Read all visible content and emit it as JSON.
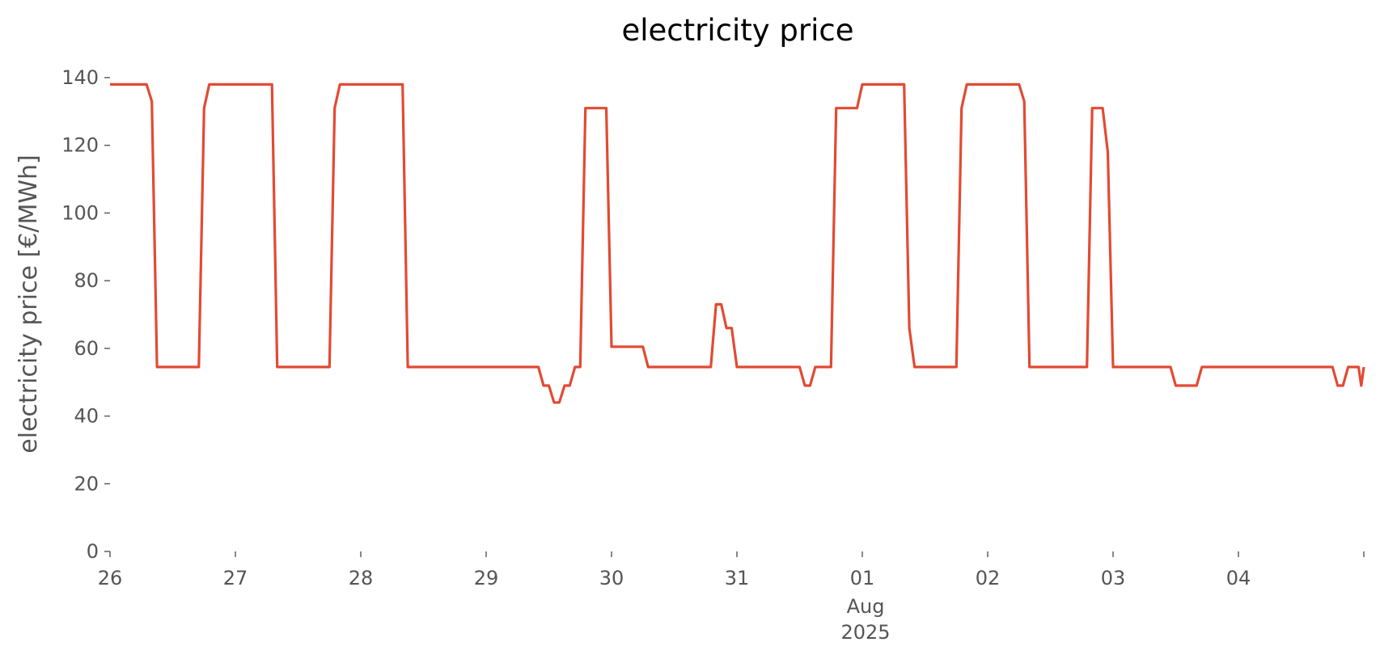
{
  "chart_data": {
    "type": "line",
    "title": "electricity price",
    "xlabel": "",
    "ylabel": "electricity price [€/MWh]",
    "ylim": [
      0,
      140
    ],
    "y_ticks": [
      0,
      20,
      40,
      60,
      80,
      100,
      120,
      140
    ],
    "y_tick_labels": [
      "0",
      "20",
      "40",
      "60",
      "80",
      "100",
      "120",
      "140"
    ],
    "xlim": [
      "2025-07-26",
      "2025-08-05"
    ],
    "x_ticks": [
      {
        "date": "2025-07-26",
        "label": "26"
      },
      {
        "date": "2025-07-27",
        "label": "27"
      },
      {
        "date": "2025-07-28",
        "label": "28"
      },
      {
        "date": "2025-07-29",
        "label": "29"
      },
      {
        "date": "2025-07-30",
        "label": "30"
      },
      {
        "date": "2025-07-31",
        "label": "31"
      },
      {
        "date": "2025-08-01",
        "label": "01"
      },
      {
        "date": "2025-08-02",
        "label": "02"
      },
      {
        "date": "2025-08-03",
        "label": "03"
      },
      {
        "date": "2025-08-04",
        "label": "04"
      },
      {
        "date": "2025-08-05",
        "label": ""
      }
    ],
    "x_secondary_label": [
      "Aug",
      "2025"
    ],
    "grid": false,
    "series": [
      {
        "color": "#E24A33",
        "points": [
          [
            "2025-07-26 00:00",
            138
          ],
          [
            "2025-07-26 07:00",
            138
          ],
          [
            "2025-07-26 08:00",
            133
          ],
          [
            "2025-07-26 09:00",
            54.5
          ],
          [
            "2025-07-26 17:00",
            54.5
          ],
          [
            "2025-07-26 18:00",
            131
          ],
          [
            "2025-07-26 19:00",
            138
          ],
          [
            "2025-07-27 07:00",
            138
          ],
          [
            "2025-07-27 08:00",
            54.5
          ],
          [
            "2025-07-27 18:00",
            54.5
          ],
          [
            "2025-07-27 19:00",
            131
          ],
          [
            "2025-07-27 20:00",
            138
          ],
          [
            "2025-07-28 08:00",
            138
          ],
          [
            "2025-07-28 09:00",
            54.5
          ],
          [
            "2025-07-29 10:00",
            54.5
          ],
          [
            "2025-07-29 11:00",
            49
          ],
          [
            "2025-07-29 12:00",
            49
          ],
          [
            "2025-07-29 13:00",
            44
          ],
          [
            "2025-07-29 14:00",
            44
          ],
          [
            "2025-07-29 15:00",
            49
          ],
          [
            "2025-07-29 16:00",
            49
          ],
          [
            "2025-07-29 17:00",
            54.5
          ],
          [
            "2025-07-29 18:00",
            54.5
          ],
          [
            "2025-07-29 19:00",
            131
          ],
          [
            "2025-07-29 23:00",
            131
          ],
          [
            "2025-07-30 00:00",
            60.5
          ],
          [
            "2025-07-30 06:00",
            60.5
          ],
          [
            "2025-07-30 07:00",
            54.5
          ],
          [
            "2025-07-30 19:00",
            54.5
          ],
          [
            "2025-07-30 20:00",
            73
          ],
          [
            "2025-07-30 21:00",
            73
          ],
          [
            "2025-07-30 22:00",
            66
          ],
          [
            "2025-07-30 23:00",
            66
          ],
          [
            "2025-07-31 00:00",
            54.5
          ],
          [
            "2025-07-31 12:00",
            54.5
          ],
          [
            "2025-07-31 13:00",
            49
          ],
          [
            "2025-07-31 14:00",
            49
          ],
          [
            "2025-07-31 15:00",
            54.5
          ],
          [
            "2025-07-31 18:00",
            54.5
          ],
          [
            "2025-07-31 19:00",
            131
          ],
          [
            "2025-07-31 23:00",
            131
          ],
          [
            "2025-08-01 00:00",
            138
          ],
          [
            "2025-08-01 08:00",
            138
          ],
          [
            "2025-08-01 09:00",
            66
          ],
          [
            "2025-08-01 10:00",
            54.5
          ],
          [
            "2025-08-01 18:00",
            54.5
          ],
          [
            "2025-08-01 19:00",
            131
          ],
          [
            "2025-08-01 20:00",
            138
          ],
          [
            "2025-08-02 06:00",
            138
          ],
          [
            "2025-08-02 07:00",
            133
          ],
          [
            "2025-08-02 08:00",
            54.5
          ],
          [
            "2025-08-02 19:00",
            54.5
          ],
          [
            "2025-08-02 20:00",
            131
          ],
          [
            "2025-08-02 22:00",
            131
          ],
          [
            "2025-08-02 23:00",
            118
          ],
          [
            "2025-08-03 00:00",
            54.5
          ],
          [
            "2025-08-03 11:00",
            54.5
          ],
          [
            "2025-08-03 12:00",
            49
          ],
          [
            "2025-08-03 16:00",
            49
          ],
          [
            "2025-08-03 17:00",
            54.5
          ],
          [
            "2025-08-04 18:00",
            54.5
          ],
          [
            "2025-08-04 19:00",
            49
          ],
          [
            "2025-08-04 20:00",
            49
          ],
          [
            "2025-08-04 21:00",
            54.5
          ],
          [
            "2025-08-04 23:00",
            54.5
          ],
          [
            "2025-08-04 23:30",
            49
          ],
          [
            "2025-08-05 00:00",
            54.5
          ]
        ]
      }
    ]
  }
}
